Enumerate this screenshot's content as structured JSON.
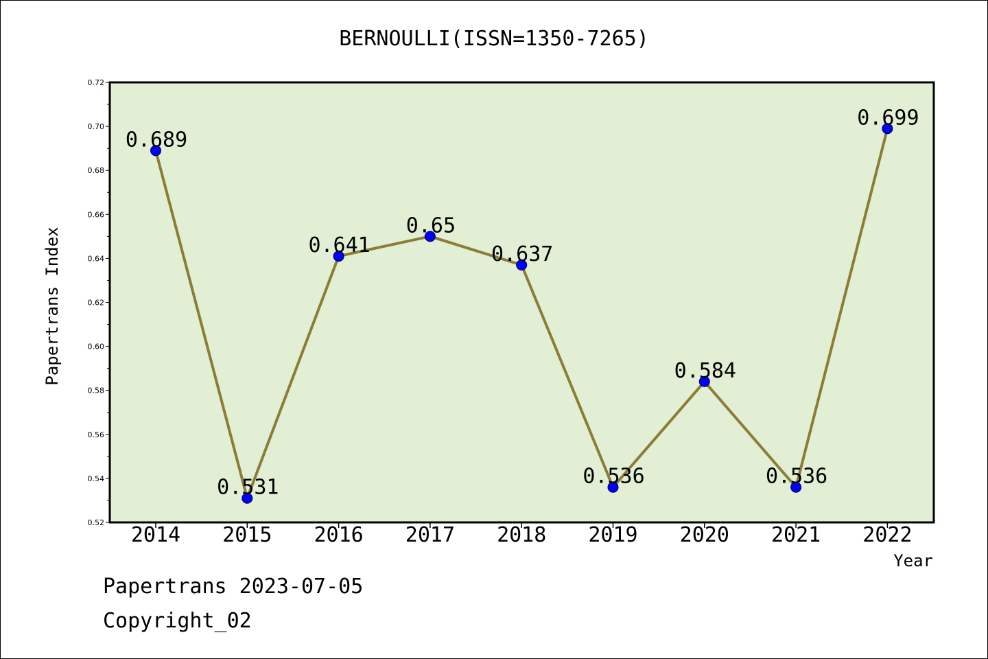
{
  "chart_data": {
    "type": "line",
    "title": "BERNOULLI(ISSN=1350-7265)",
    "xlabel": "Year",
    "ylabel": "Papertrans Index",
    "categories": [
      "2014",
      "2015",
      "2016",
      "2017",
      "2018",
      "2019",
      "2020",
      "2021",
      "2022"
    ],
    "values": [
      0.689,
      0.531,
      0.641,
      0.65,
      0.637,
      0.536,
      0.584,
      0.536,
      0.699
    ],
    "data_labels": [
      "0.689",
      "0.531",
      "0.641",
      "0.65",
      "0.637",
      "0.536",
      "0.584",
      "0.536",
      "0.699"
    ],
    "ylim": [
      0.52,
      0.72
    ],
    "yticks": [
      "0.52",
      "0.54",
      "0.56",
      "0.58",
      "0.60",
      "0.62",
      "0.64",
      "0.66",
      "0.68",
      "0.70",
      "0.72"
    ],
    "grid": false,
    "legend": "none",
    "colors": {
      "plot_background": "#e2efd5",
      "line": "#8b7d35",
      "marker": "#0000ff"
    }
  },
  "footer": {
    "line1": "Papertrans 2023-07-05",
    "line2": "Copyright_02"
  }
}
